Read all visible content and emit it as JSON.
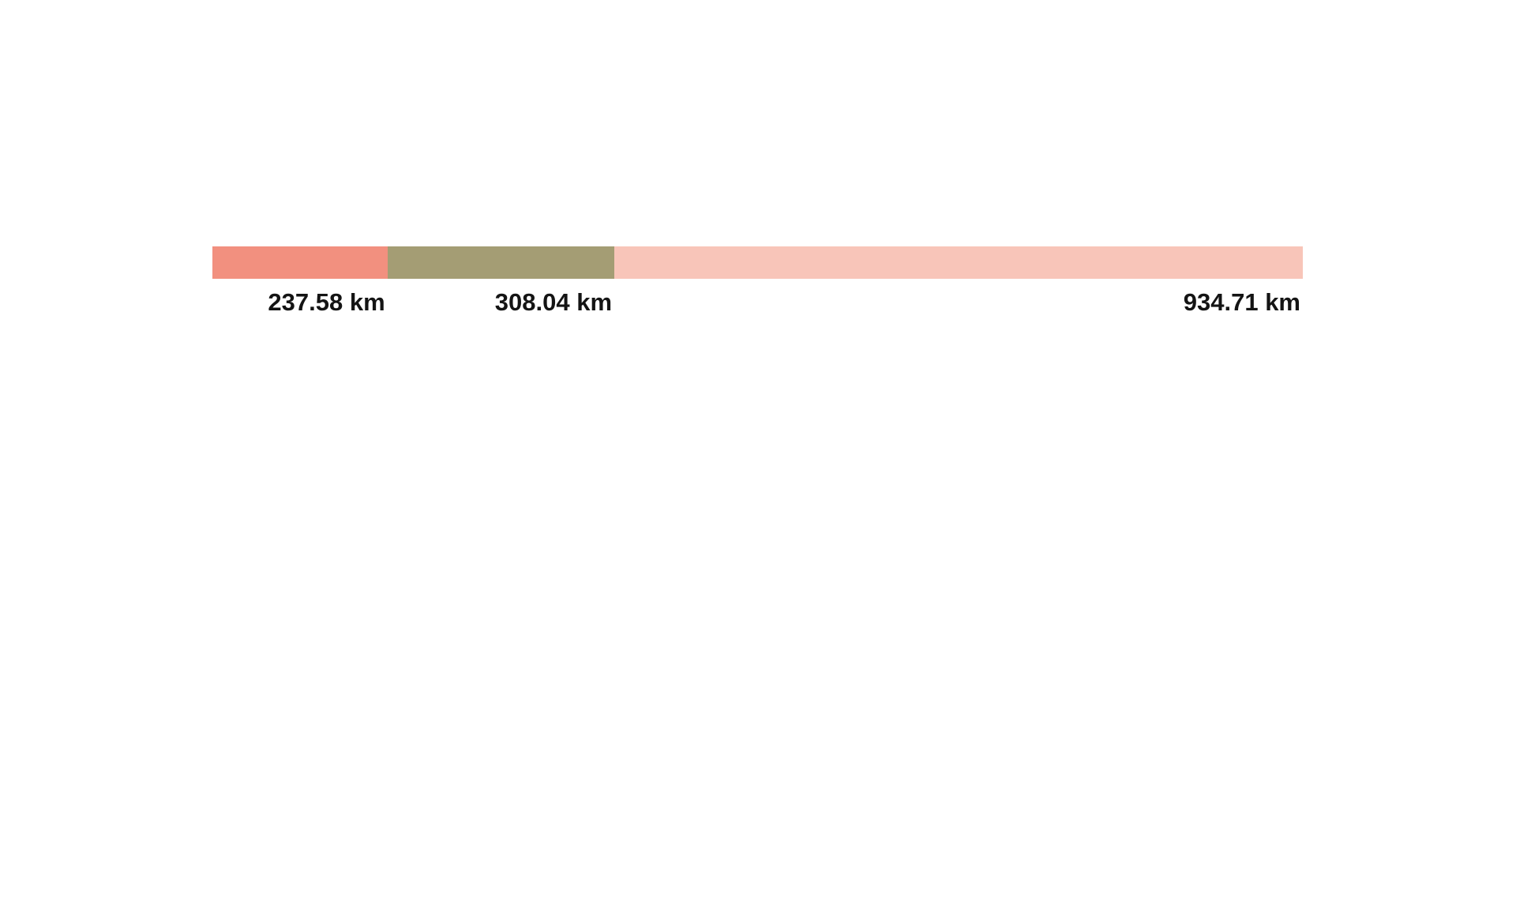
{
  "chart_data": {
    "type": "bar",
    "subtype": "horizontal-stacked",
    "title": "",
    "unit": "km",
    "background_color": "#ffffff",
    "label_color": "#141414",
    "total": 1480.33,
    "segments": [
      {
        "name": "segment-1",
        "label": "237.58 km",
        "value": 237.58,
        "color": "#f2907f"
      },
      {
        "name": "segment-2",
        "label": "308.04 km",
        "value": 308.04,
        "color": "#a49d74"
      },
      {
        "name": "segment-3",
        "label": "934.71 km",
        "value": 934.71,
        "color": "#f8c5b9"
      }
    ],
    "layout": {
      "axes": "none",
      "grid": false,
      "legend": "none",
      "label_position": "below-bar-right-aligned"
    }
  }
}
